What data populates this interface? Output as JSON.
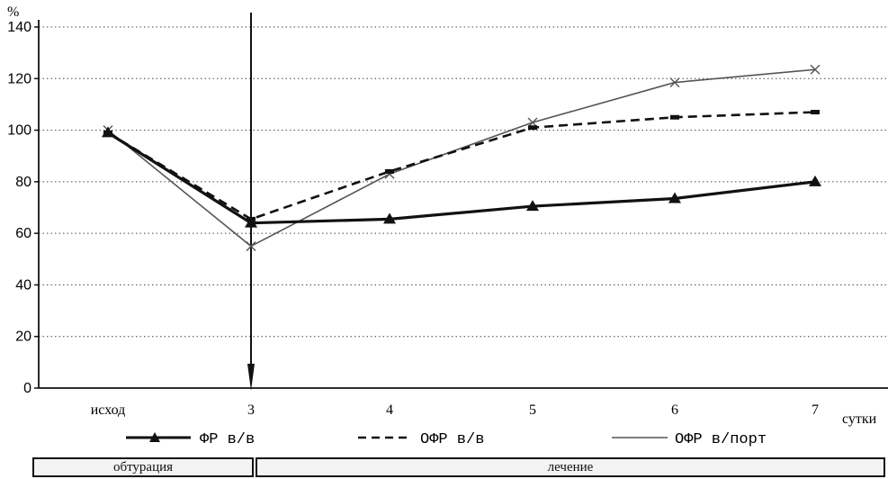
{
  "chart_data": {
    "type": "line",
    "categories": [
      "исход",
      "3",
      "4",
      "5",
      "6",
      "7"
    ],
    "ylim": [
      0,
      140
    ],
    "yticks": [
      0,
      20,
      40,
      60,
      80,
      100,
      120,
      140
    ],
    "yunit": "%",
    "xunit": "сутки",
    "grid": "horizontal dotted",
    "series": [
      {
        "name": "ФР в/в",
        "style": "solid-bold",
        "marker": "triangle",
        "color": "#111111",
        "values": [
          99,
          64,
          65.5,
          70.5,
          73.5,
          80
        ]
      },
      {
        "name": "ОФР в/в",
        "style": "dashed",
        "marker": "dash",
        "color": "#111111",
        "values": [
          99,
          65.5,
          84,
          101,
          105,
          107
        ]
      },
      {
        "name": "ОФР в/порт",
        "style": "solid-thin",
        "marker": "cross",
        "color": "#555555",
        "values": [
          100,
          55,
          83,
          103,
          118.5,
          123.5
        ]
      }
    ],
    "marker_line": {
      "at_category": "3",
      "style": "arrow-down"
    }
  },
  "phases": [
    {
      "label": "обтурация"
    },
    {
      "label": "лечение"
    }
  ]
}
